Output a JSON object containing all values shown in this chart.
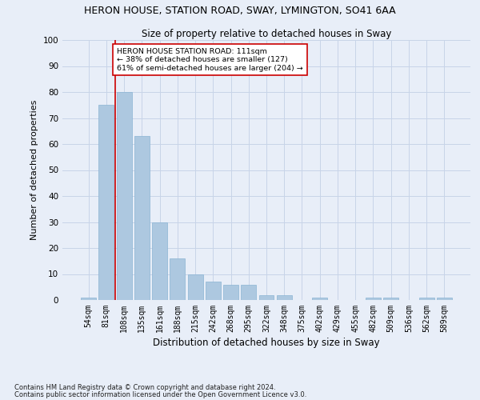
{
  "title1": "HERON HOUSE, STATION ROAD, SWAY, LYMINGTON, SO41 6AA",
  "title2": "Size of property relative to detached houses in Sway",
  "xlabel": "Distribution of detached houses by size in Sway",
  "ylabel": "Number of detached properties",
  "footnote1": "Contains HM Land Registry data © Crown copyright and database right 2024.",
  "footnote2": "Contains public sector information licensed under the Open Government Licence v3.0.",
  "categories": [
    "54sqm",
    "81sqm",
    "108sqm",
    "135sqm",
    "161sqm",
    "188sqm",
    "215sqm",
    "242sqm",
    "268sqm",
    "295sqm",
    "322sqm",
    "348sqm",
    "375sqm",
    "402sqm",
    "429sqm",
    "455sqm",
    "482sqm",
    "509sqm",
    "536sqm",
    "562sqm",
    "589sqm"
  ],
  "values": [
    1,
    75,
    80,
    63,
    30,
    16,
    10,
    7,
    6,
    6,
    2,
    2,
    0,
    1,
    0,
    0,
    1,
    1,
    0,
    1,
    1
  ],
  "bar_color": "#adc8e0",
  "bar_edge_color": "#8ab4d4",
  "grid_color": "#c8d4e8",
  "background_color": "#e8eef8",
  "vline_x": 1.5,
  "vline_color": "#cc0000",
  "annotation_text": "HERON HOUSE STATION ROAD: 111sqm\n← 38% of detached houses are smaller (127)\n61% of semi-detached houses are larger (204) →",
  "annotation_box_color": "#ffffff",
  "annotation_box_edge": "#cc0000",
  "ylim": [
    0,
    100
  ],
  "yticks": [
    0,
    10,
    20,
    30,
    40,
    50,
    60,
    70,
    80,
    90,
    100
  ]
}
